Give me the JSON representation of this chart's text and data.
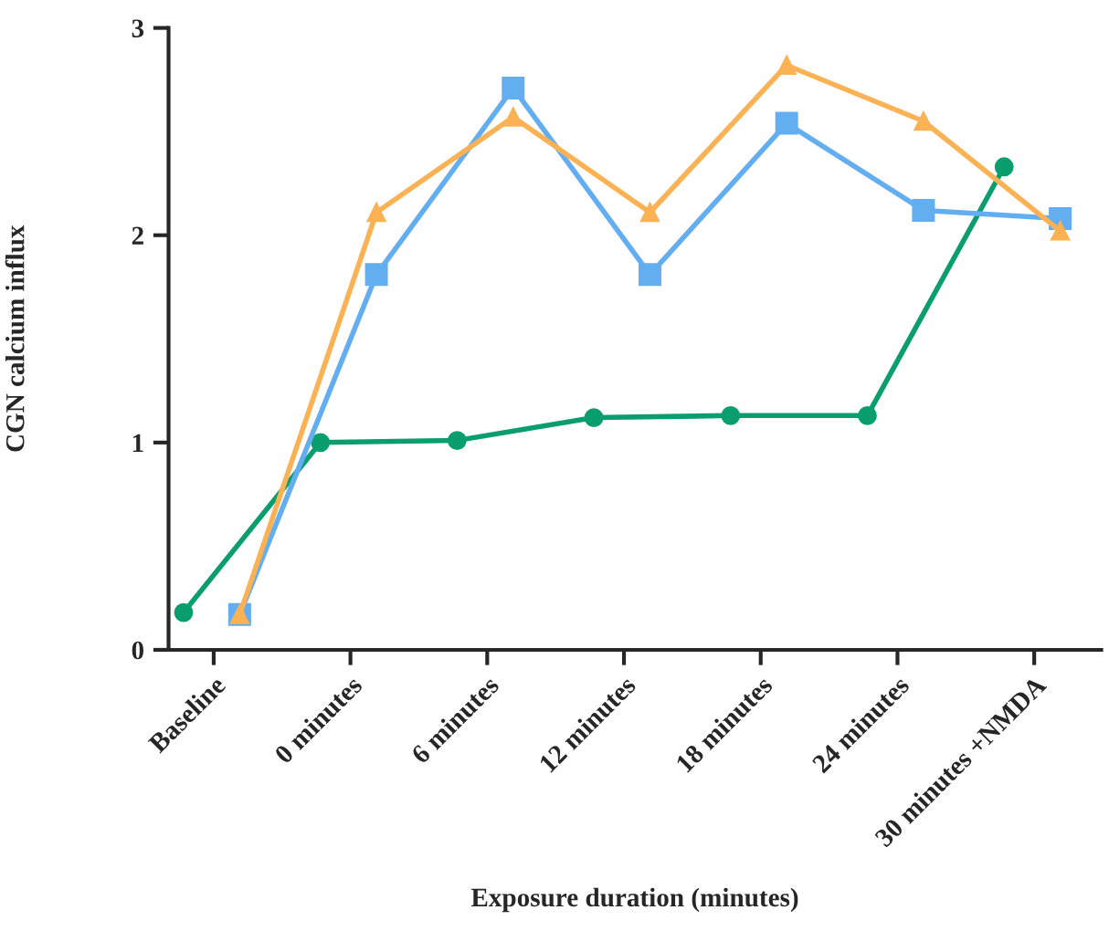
{
  "chart_data": {
    "type": "line",
    "xlabel": "Exposure duration (minutes)",
    "ylabel": "CGN calcium influx",
    "categories": [
      "Baseline",
      "0 minutes",
      "6 minutes",
      "12 minutes",
      "18 minutes",
      "24 minutes",
      "30 minutes +NMDA"
    ],
    "ylim": [
      0,
      3
    ],
    "yticks": [
      0,
      1,
      2,
      3
    ],
    "grid": false,
    "legend": false,
    "line_style": "solid",
    "series": [
      {
        "color": "#0a9e6e",
        "marker": "circle",
        "values": [
          0.18,
          1.0,
          1.01,
          1.12,
          1.13,
          1.13,
          2.33
        ]
      },
      {
        "color": "#62aef0",
        "marker": "square",
        "values": [
          0.17,
          1.81,
          2.71,
          1.81,
          2.54,
          2.12,
          2.08
        ]
      },
      {
        "color": "#fbb254",
        "marker": "triangle",
        "values": [
          0.17,
          2.11,
          2.57,
          2.11,
          2.82,
          2.55,
          2.02
        ]
      }
    ]
  }
}
